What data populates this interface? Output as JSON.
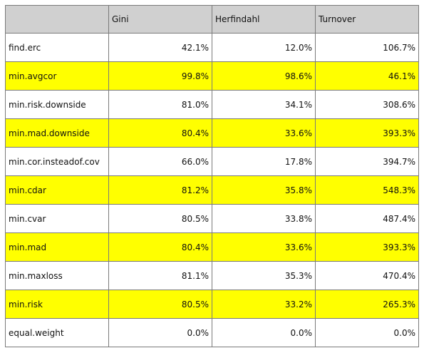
{
  "table": {
    "columns": [
      "",
      "Gini",
      "Herfindahl",
      "Turnover"
    ],
    "rows": [
      {
        "name": "find.erc",
        "gini": "42.1%",
        "herfindahl": "12.0%",
        "turnover": "106.7%",
        "highlight": false
      },
      {
        "name": "min.avgcor",
        "gini": "99.8%",
        "herfindahl": "98.6%",
        "turnover": "46.1%",
        "highlight": true
      },
      {
        "name": "min.risk.downside",
        "gini": "81.0%",
        "herfindahl": "34.1%",
        "turnover": "308.6%",
        "highlight": false
      },
      {
        "name": "min.mad.downside",
        "gini": "80.4%",
        "herfindahl": "33.6%",
        "turnover": "393.3%",
        "highlight": true
      },
      {
        "name": "min.cor.insteadof.cov",
        "gini": "66.0%",
        "herfindahl": "17.8%",
        "turnover": "394.7%",
        "highlight": false
      },
      {
        "name": "min.cdar",
        "gini": "81.2%",
        "herfindahl": "35.8%",
        "turnover": "548.3%",
        "highlight": true
      },
      {
        "name": "min.cvar",
        "gini": "80.5%",
        "herfindahl": "33.8%",
        "turnover": "487.4%",
        "highlight": false
      },
      {
        "name": "min.mad",
        "gini": "80.4%",
        "herfindahl": "33.6%",
        "turnover": "393.3%",
        "highlight": true
      },
      {
        "name": "min.maxloss",
        "gini": "81.1%",
        "herfindahl": "35.3%",
        "turnover": "470.4%",
        "highlight": false
      },
      {
        "name": "min.risk",
        "gini": "80.5%",
        "herfindahl": "33.2%",
        "turnover": "265.3%",
        "highlight": true
      },
      {
        "name": "equal.weight",
        "gini": "0.0%",
        "herfindahl": "0.0%",
        "turnover": "0.0%",
        "highlight": false
      }
    ]
  },
  "colors": {
    "highlight": "#ffff00",
    "header_bg": "#d0d0d0",
    "border": "#7a7a7a"
  }
}
